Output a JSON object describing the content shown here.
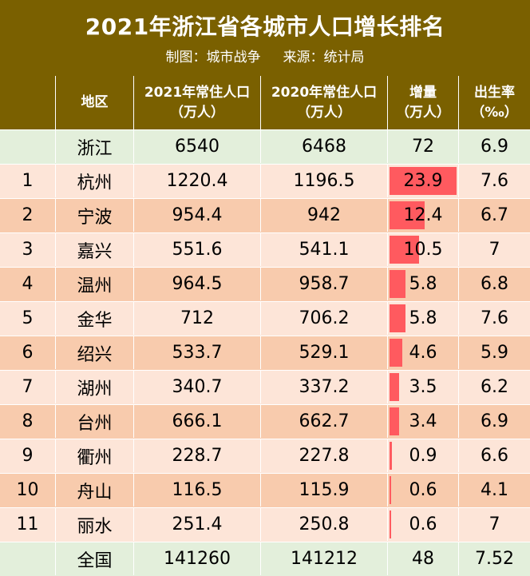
{
  "title": "2021年浙江省各城市人口增长排名",
  "subtitle": {
    "maker": "制图：城市战争",
    "source": "来源：统计局"
  },
  "colors": {
    "header_bg": "#7a6000",
    "summary_row_bg": "#e3efdb",
    "row_light": "#fde5d8",
    "row_dark": "#f8cbad",
    "bar": "#ff5a5f"
  },
  "headers": {
    "rank": "",
    "region": "地区",
    "pop2021_l1": "2021年常住人口",
    "pop2021_l2": "（万人）",
    "pop2020_l1": "2020年常住人口",
    "pop2020_l2": "（万人）",
    "increase_l1": "增量",
    "increase_l2": "（万人）",
    "birth_l1": "出生率",
    "birth_l2": "（‰）"
  },
  "max_bar_value": 23.9,
  "rows": [
    {
      "rank": "",
      "region": "浙江",
      "pop2021": "6540",
      "pop2020": "6468",
      "increase": "72",
      "increase_num": 0,
      "birth": "6.9",
      "style": "summary"
    },
    {
      "rank": "1",
      "region": "杭州",
      "pop2021": "1220.4",
      "pop2020": "1196.5",
      "increase": "23.9",
      "increase_num": 23.9,
      "birth": "7.6",
      "style": "light"
    },
    {
      "rank": "2",
      "region": "宁波",
      "pop2021": "954.4",
      "pop2020": "942",
      "increase": "12.4",
      "increase_num": 12.4,
      "birth": "6.7",
      "style": "dark"
    },
    {
      "rank": "3",
      "region": "嘉兴",
      "pop2021": "551.6",
      "pop2020": "541.1",
      "increase": "10.5",
      "increase_num": 10.5,
      "birth": "7",
      "style": "light"
    },
    {
      "rank": "4",
      "region": "温州",
      "pop2021": "964.5",
      "pop2020": "958.7",
      "increase": "5.8",
      "increase_num": 5.8,
      "birth": "6.8",
      "style": "dark"
    },
    {
      "rank": "5",
      "region": "金华",
      "pop2021": "712",
      "pop2020": "706.2",
      "increase": "5.8",
      "increase_num": 5.8,
      "birth": "7.6",
      "style": "light"
    },
    {
      "rank": "6",
      "region": "绍兴",
      "pop2021": "533.7",
      "pop2020": "529.1",
      "increase": "4.6",
      "increase_num": 4.6,
      "birth": "5.9",
      "style": "dark"
    },
    {
      "rank": "7",
      "region": "湖州",
      "pop2021": "340.7",
      "pop2020": "337.2",
      "increase": "3.5",
      "increase_num": 3.5,
      "birth": "6.2",
      "style": "light"
    },
    {
      "rank": "8",
      "region": "台州",
      "pop2021": "666.1",
      "pop2020": "662.7",
      "increase": "3.4",
      "increase_num": 3.4,
      "birth": "6.9",
      "style": "dark"
    },
    {
      "rank": "9",
      "region": "衢州",
      "pop2021": "228.7",
      "pop2020": "227.8",
      "increase": "0.9",
      "increase_num": 0.9,
      "birth": "6.6",
      "style": "light"
    },
    {
      "rank": "10",
      "region": "舟山",
      "pop2021": "116.5",
      "pop2020": "115.9",
      "increase": "0.6",
      "increase_num": 0.6,
      "birth": "4.1",
      "style": "dark"
    },
    {
      "rank": "11",
      "region": "丽水",
      "pop2021": "251.4",
      "pop2020": "250.8",
      "increase": "0.6",
      "increase_num": 0.6,
      "birth": "7",
      "style": "light"
    },
    {
      "rank": "",
      "region": "全国",
      "pop2021": "141260",
      "pop2020": "141212",
      "increase": "48",
      "increase_num": 0,
      "birth": "7.52",
      "style": "summary"
    }
  ]
}
